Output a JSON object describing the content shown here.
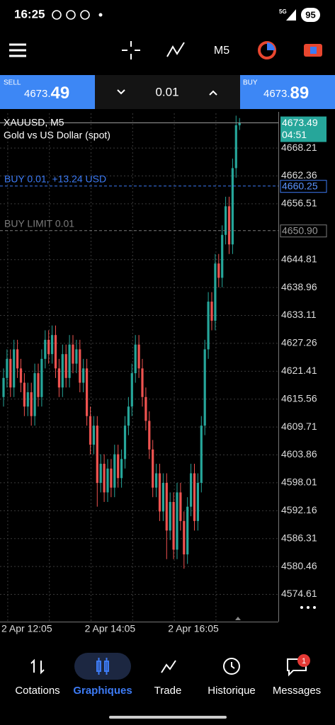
{
  "status_bar": {
    "time": "16:25",
    "network": "5G",
    "battery": "95"
  },
  "toolbar": {
    "timeframe": "M5"
  },
  "trade_panel": {
    "sell_label": "SELL",
    "sell_price_main": "4673.",
    "sell_price_pips": "49",
    "volume": "0.01",
    "buy_label": "BUY",
    "buy_price_main": "4673.",
    "buy_price_pips": "89"
  },
  "chart_data": {
    "type": "candlestick",
    "symbol": "XAUUSD, M5",
    "description": "Gold vs US Dollar (spot)",
    "categories": [
      "2 Apr 12:05",
      null,
      null,
      null,
      null,
      null,
      null,
      null,
      null,
      null,
      null,
      null,
      null,
      null,
      null,
      null,
      null,
      null,
      null,
      null,
      null,
      null,
      null,
      null,
      "2 Apr 14:05",
      null,
      null,
      null,
      null,
      null,
      null,
      null,
      null,
      null,
      null,
      null,
      null,
      null,
      null,
      null,
      null,
      null,
      null,
      null,
      null,
      null,
      null,
      null,
      "2 Apr 16:05",
      null,
      null,
      null,
      null,
      null,
      null,
      null,
      null,
      null,
      null,
      null,
      null,
      null,
      null,
      null,
      null,
      null,
      null,
      null,
      null
    ],
    "open": [
      4616,
      4620,
      4624,
      4618,
      4626,
      4622,
      4619,
      4614,
      4617,
      4612,
      4621,
      4616,
      4624,
      4628,
      4625,
      4629,
      4622,
      4618,
      4625,
      4620,
      4627,
      4623,
      4626,
      4619,
      4622,
      4612,
      4606,
      4610,
      4598,
      4602,
      4596,
      4601,
      4597,
      4604,
      4599,
      4603,
      4610,
      4614,
      4621,
      4627,
      4622,
      4616,
      4611,
      4605,
      4597,
      4600,
      4592,
      4598,
      4588,
      4594,
      4584,
      4596,
      4590,
      4583,
      4593,
      4600,
      4590,
      4598,
      4610,
      4626,
      4636,
      4632,
      4644,
      4641,
      4650,
      4656,
      4648,
      4664,
      4673
    ],
    "high": [
      4622,
      4626,
      4626,
      4628,
      4628,
      4624,
      4621,
      4619,
      4619,
      4623,
      4623,
      4626,
      4630,
      4630,
      4631,
      4631,
      4624,
      4627,
      4627,
      4629,
      4629,
      4628,
      4628,
      4624,
      4624,
      4614,
      4612,
      4612,
      4604,
      4604,
      4603,
      4603,
      4606,
      4606,
      4605,
      4612,
      4616,
      4623,
      4629,
      4629,
      4624,
      4618,
      4613,
      4607,
      4602,
      4602,
      4600,
      4600,
      4596,
      4596,
      4598,
      4598,
      4592,
      4595,
      4602,
      4602,
      4600,
      4612,
      4628,
      4638,
      4638,
      4646,
      4646,
      4652,
      4658,
      4658,
      4666,
      4675,
      4674.5
    ],
    "low": [
      4614,
      4618,
      4616,
      4616,
      4620,
      4617,
      4612,
      4612,
      4610,
      4610,
      4614,
      4614,
      4622,
      4623,
      4623,
      4620,
      4616,
      4616,
      4618,
      4618,
      4621,
      4621,
      4617,
      4617,
      4610,
      4604,
      4604,
      4593,
      4596,
      4594,
      4594,
      4595,
      4595,
      4597,
      4597,
      4601,
      4608,
      4612,
      4619,
      4620,
      4614,
      4609,
      4603,
      4595,
      4595,
      4590,
      4590,
      4582,
      4586,
      4582,
      4582,
      4588,
      4580,
      4581,
      4591,
      4588,
      4588,
      4596,
      4608,
      4624,
      4630,
      4630,
      4639,
      4639,
      4648,
      4646,
      4646,
      4662,
      4672
    ],
    "close": [
      4620,
      4624,
      4618,
      4626,
      4622,
      4619,
      4614,
      4617,
      4612,
      4621,
      4616,
      4624,
      4628,
      4625,
      4629,
      4622,
      4618,
      4625,
      4620,
      4627,
      4623,
      4626,
      4619,
      4622,
      4612,
      4606,
      4610,
      4598,
      4602,
      4596,
      4601,
      4597,
      4604,
      4599,
      4603,
      4610,
      4614,
      4621,
      4627,
      4622,
      4616,
      4611,
      4605,
      4597,
      4600,
      4592,
      4598,
      4588,
      4594,
      4584,
      4596,
      4590,
      4583,
      4593,
      4600,
      4590,
      4598,
      4610,
      4626,
      4636,
      4632,
      4644,
      4641,
      4650,
      4656,
      4648,
      4664,
      4673,
      4673.49
    ],
    "up_color": "#26a69a",
    "down_color": "#ef5350",
    "ylim": [
      4568.9,
      4675.5
    ],
    "yticks": [
      4574.61,
      4580.46,
      4586.31,
      4592.16,
      4598.01,
      4603.86,
      4609.71,
      4615.56,
      4621.41,
      4627.26,
      4633.11,
      4638.96,
      4644.81,
      4656.51,
      4662.36,
      4668.21
    ],
    "grid": true,
    "current_price": {
      "value": 4673.49,
      "countdown": "04:51",
      "color": "#26a69a"
    },
    "price_lines": [
      {
        "text": "BUY 0.01,  +13.24 USD",
        "price": 4660.25,
        "color": "#3d7bf5"
      },
      {
        "text": "BUY LIMIT 0.01",
        "price": {
          "value": 4650.9,
          "label": "4650.90"
        },
        "color": "#7a7a7a"
      }
    ]
  },
  "nav": {
    "items": [
      "Cotations",
      "Graphiques",
      "Trade",
      "Historique",
      "Messages"
    ],
    "active": 1,
    "badge": "1"
  }
}
